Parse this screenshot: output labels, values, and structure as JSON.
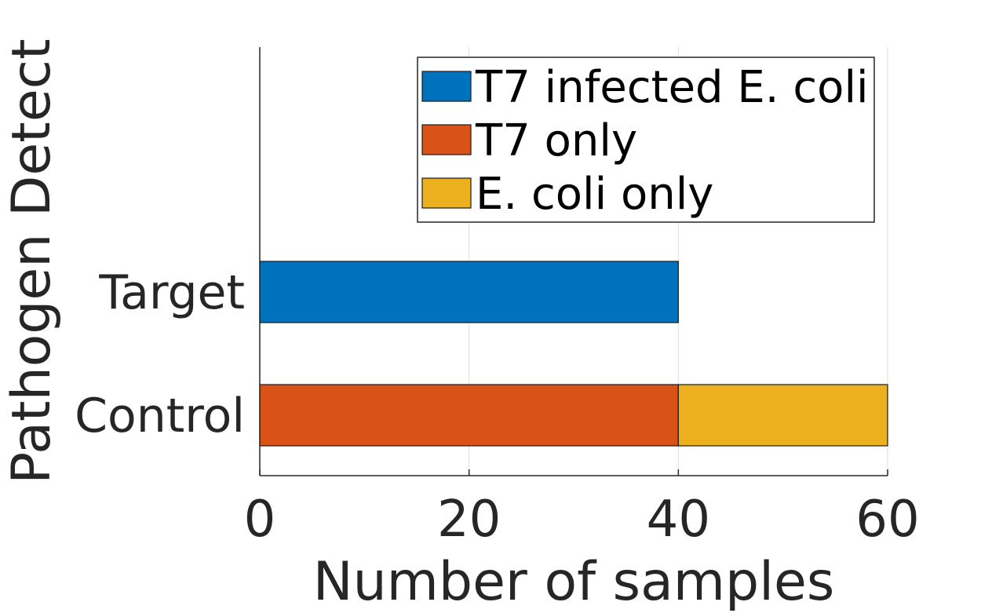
{
  "chart_data": {
    "type": "bar",
    "orientation": "horizontal",
    "stacked": true,
    "categories": [
      "Target",
      "Control"
    ],
    "series": [
      {
        "name": "T7 infected E. coli",
        "values": [
          40,
          0
        ],
        "color": "#0072BD"
      },
      {
        "name": "T7 only",
        "values": [
          0,
          40
        ],
        "color": "#D95319"
      },
      {
        "name": "E. coli only",
        "values": [
          0,
          20
        ],
        "color": "#EDB120"
      }
    ],
    "xlabel": "Number of samples",
    "ylabel": "Pathogen Detect",
    "xlim": [
      0,
      60
    ],
    "xticks": [
      0,
      20,
      40,
      60
    ],
    "grid": true,
    "legend_position": "top-right"
  }
}
